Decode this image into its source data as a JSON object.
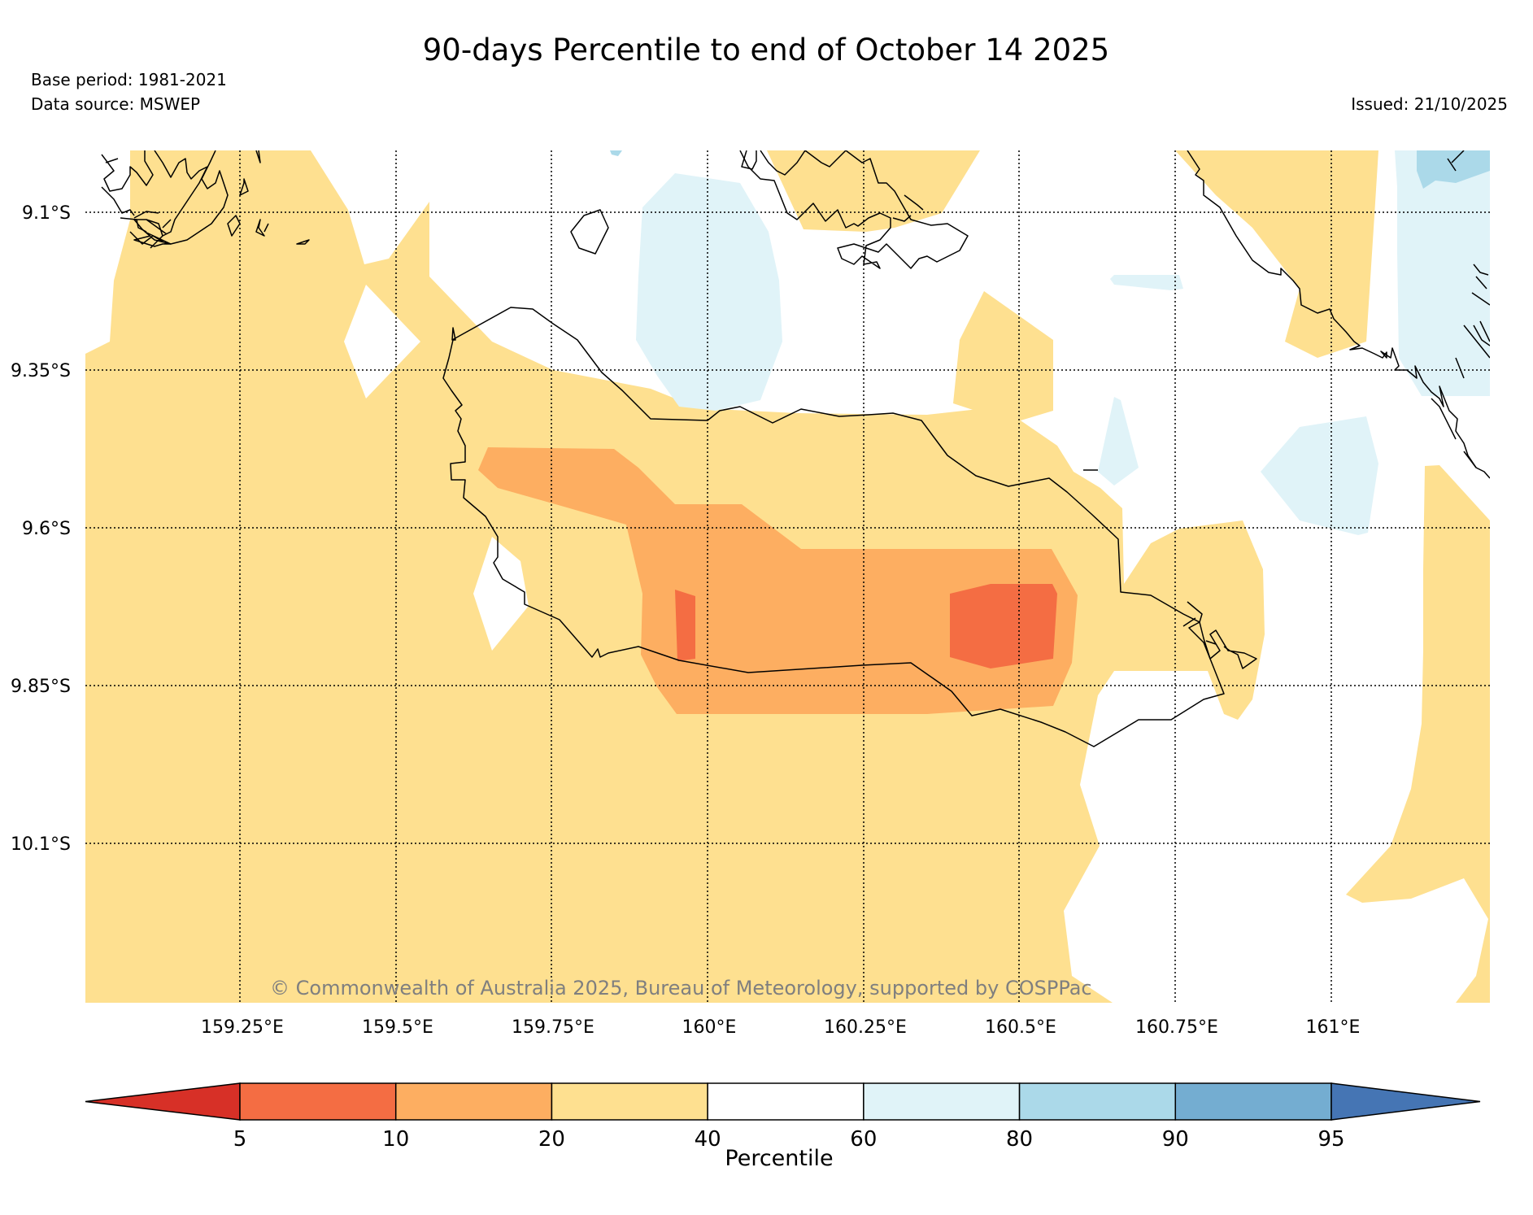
{
  "title": "90-days Percentile to end of October 14 2025",
  "base_period": "Base period: 1981-2021",
  "data_source": "Data source: MSWEP",
  "issued": "Issued: 21/10/2025",
  "copyright": "© Commonwealth of Australia 2025, Bureau of Meteorology, supported by COSPPac",
  "lat_labels": [
    "9.1°S",
    "9.35°S",
    "9.6°S",
    "9.85°S",
    "10.1°S"
  ],
  "lon_labels": [
    "159.25°E",
    "159.5°E",
    "159.75°E",
    "160°E",
    "160.25°E",
    "160.5°E",
    "160.75°E",
    "161°E"
  ],
  "colorbar": {
    "label": "Percentile",
    "ticks": [
      "5",
      "10",
      "20",
      "40",
      "60",
      "80",
      "90",
      "95"
    ],
    "colors": [
      "#d73027",
      "#f46d43",
      "#fdae61",
      "#fee090",
      "#ffffff",
      "#e0f3f8",
      "#abd9e9",
      "#74add1",
      "#4575b4"
    ]
  },
  "colors": {
    "band_5_10": "#f46d43",
    "band_10_20": "#fdae61",
    "band_20_40": "#fee090",
    "band_40_60": "#ffffff",
    "band_60_80": "#e0f3f8",
    "band_80_90": "#abd9e9",
    "coast": "#000000",
    "copyright_text": "#7f7f7f"
  }
}
